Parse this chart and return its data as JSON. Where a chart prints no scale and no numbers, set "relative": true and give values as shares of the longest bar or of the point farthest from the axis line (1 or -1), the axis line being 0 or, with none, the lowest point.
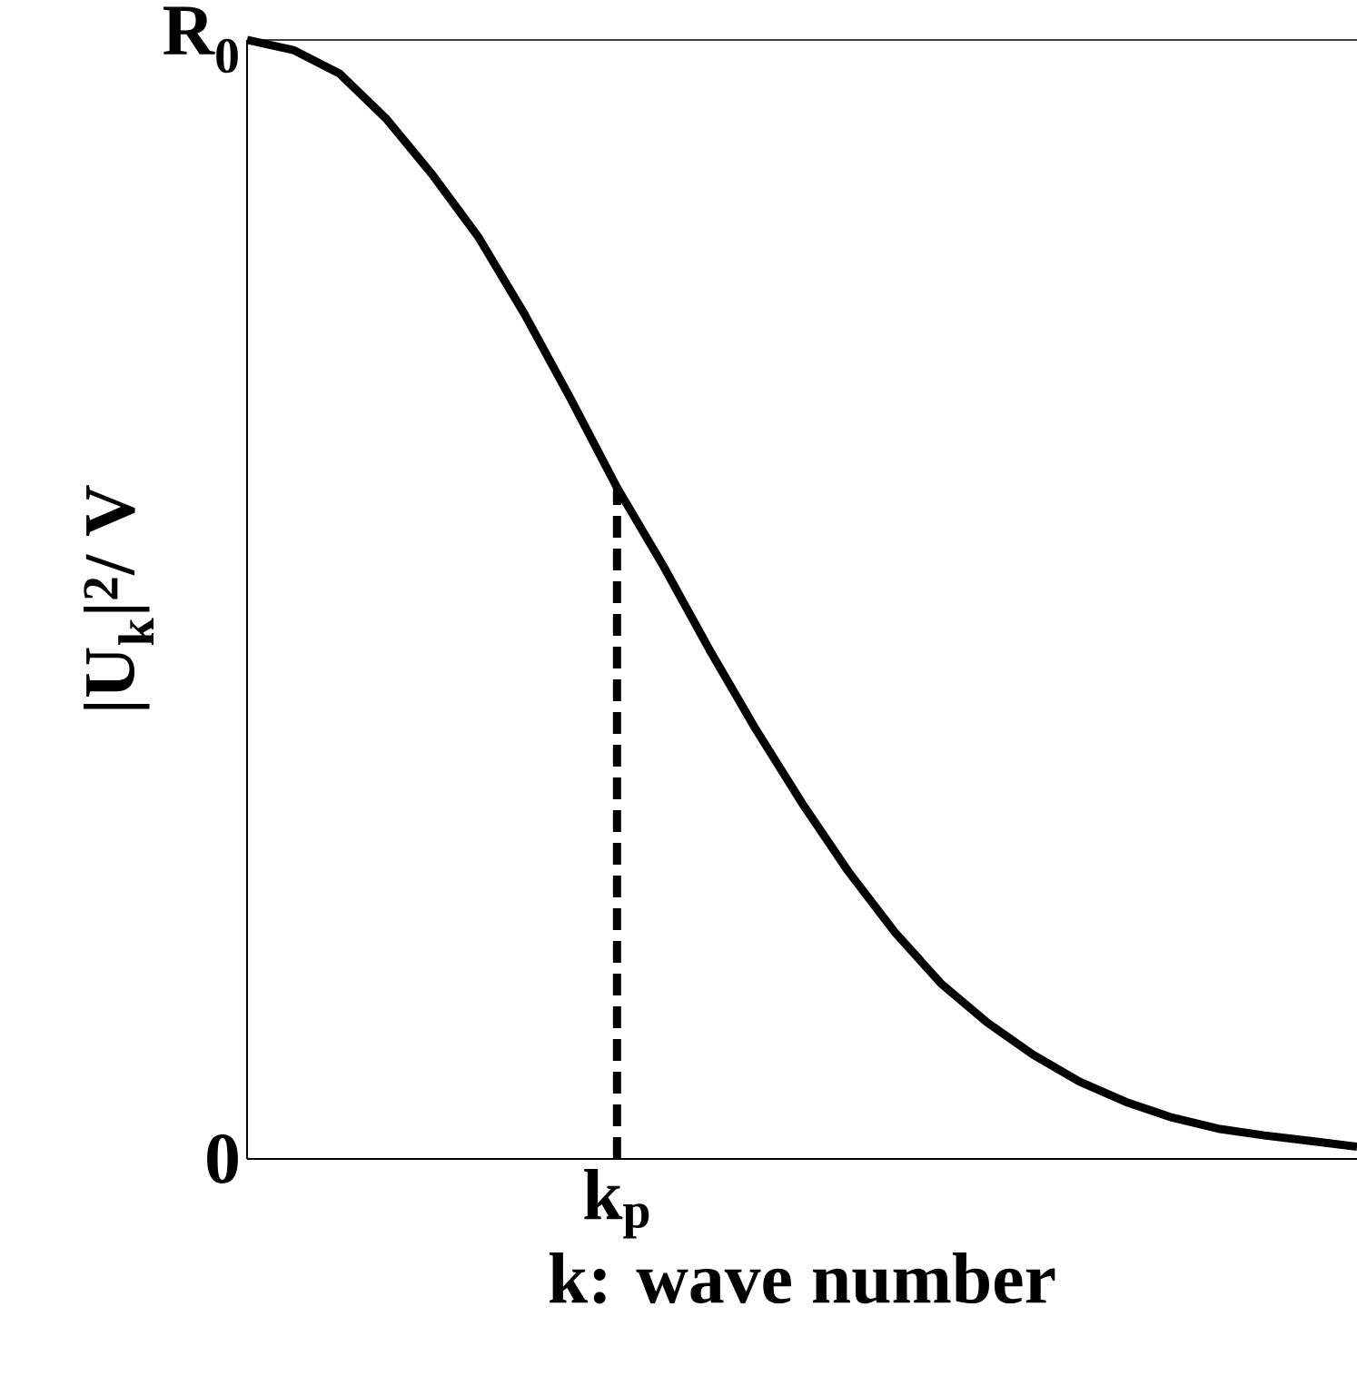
{
  "chart_data": {
    "type": "line",
    "xlabel": "k: wave number",
    "ylabel": "|U$_{k}$|$^{2}$/ V",
    "relative": true,
    "categories": [
      null,
      null,
      null,
      null,
      null,
      null,
      null,
      null,
      null,
      null,
      null,
      null,
      null,
      null,
      null,
      null,
      null,
      null,
      null,
      null,
      null,
      null,
      null,
      null,
      null
    ],
    "annotations": [
      "R$_{0}$",
      "0",
      {
        "text": "k$_{p}$",
        "y": 0.6
      }
    ],
    "series": [
      {
        "color": "#000000",
        "values": [
          1,
          0.991,
          0.97,
          0.93,
          0.88,
          0.824,
          0.755,
          0.679,
          0.6,
          0.53,
          0.455,
          0.384,
          0.318,
          0.257,
          0.203,
          0.157,
          0.122,
          0.093,
          0.069,
          0.051,
          0.037,
          0.027,
          0.021,
          0.016,
          0.011
        ]
      }
    ]
  }
}
